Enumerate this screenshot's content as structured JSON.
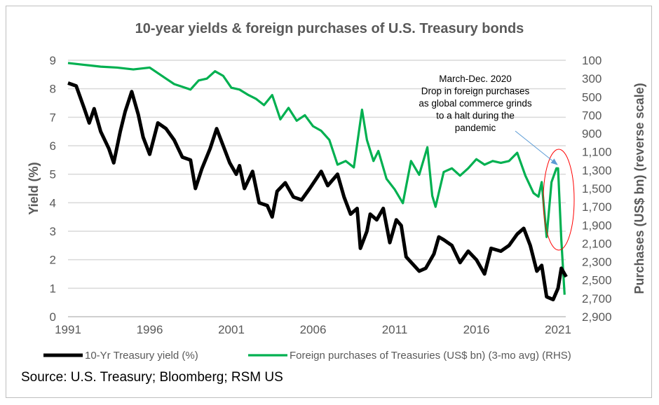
{
  "chart_data": {
    "type": "line",
    "title": "10-year yields & foreign purchases of U.S. Treasury bonds",
    "ylabel": "Yield (%)",
    "y2label": "Purchases (US$ bn) (reverse scale)",
    "xlim": [
      1991,
      2021.6
    ],
    "ylim": [
      0,
      9
    ],
    "y2lim": [
      100,
      2900
    ],
    "y2_reversed": true,
    "x_ticks": [
      "1991",
      "1996",
      "2001",
      "2006",
      "2011",
      "2016",
      "2021"
    ],
    "y_ticks": [
      "0",
      "1",
      "2",
      "3",
      "4",
      "5",
      "6",
      "7",
      "8",
      "9"
    ],
    "y2_ticks": [
      "100",
      "300",
      "500",
      "700",
      "900",
      "1,100",
      "1,300",
      "1,500",
      "1,700",
      "1,900",
      "2,100",
      "2,300",
      "2,500",
      "2,700",
      "2,900"
    ],
    "grid": true,
    "legend_position": "bottom",
    "series": [
      {
        "name": "10-Yr Treasury yield (%)",
        "axis": "left",
        "color": "#000000",
        "x": [
          1991.0,
          1991.5,
          1992.0,
          1992.3,
          1992.6,
          1993.0,
          1993.5,
          1993.8,
          1994.2,
          1994.5,
          1994.9,
          1995.3,
          1995.6,
          1996.0,
          1996.5,
          1997.0,
          1997.5,
          1998.0,
          1998.5,
          1998.8,
          1999.2,
          1999.7,
          2000.1,
          2000.5,
          2000.9,
          2001.3,
          2001.5,
          2001.8,
          2002.3,
          2002.7,
          2003.2,
          2003.5,
          2003.8,
          2004.3,
          2004.8,
          2005.3,
          2005.8,
          2006.5,
          2006.9,
          2007.5,
          2007.9,
          2008.3,
          2008.7,
          2008.9,
          2009.3,
          2009.5,
          2009.9,
          2010.3,
          2010.7,
          2011.1,
          2011.4,
          2011.7,
          2012.5,
          2012.9,
          2013.4,
          2013.7,
          2014.0,
          2014.5,
          2015.0,
          2015.5,
          2016.0,
          2016.5,
          2016.9,
          2017.5,
          2018.0,
          2018.5,
          2018.9,
          2019.3,
          2019.7,
          2020.0,
          2020.3,
          2020.7,
          2021.0,
          2021.2,
          2021.5
        ],
        "values": [
          8.2,
          8.1,
          7.3,
          6.8,
          7.3,
          6.5,
          5.9,
          5.4,
          6.5,
          7.2,
          7.9,
          7.1,
          6.3,
          5.7,
          6.8,
          6.6,
          6.2,
          5.6,
          5.5,
          4.5,
          5.2,
          5.9,
          6.6,
          6.0,
          5.4,
          5.0,
          5.3,
          4.5,
          5.1,
          4.0,
          3.9,
          3.5,
          4.4,
          4.7,
          4.2,
          4.1,
          4.5,
          5.1,
          4.6,
          5.0,
          4.2,
          3.6,
          3.8,
          2.4,
          3.0,
          3.6,
          3.4,
          3.8,
          2.6,
          3.4,
          3.2,
          2.1,
          1.6,
          1.7,
          2.2,
          2.8,
          2.7,
          2.5,
          1.9,
          2.3,
          2.0,
          1.5,
          2.4,
          2.3,
          2.5,
          2.9,
          3.1,
          2.5,
          1.6,
          1.8,
          0.7,
          0.6,
          1.0,
          1.7,
          1.4
        ]
      },
      {
        "name": "Foreign purchases of Treasuries (US$ bn) (3-mo avg) (RHS)",
        "axis": "right",
        "color": "#00b050",
        "x": [
          1991.0,
          1992.0,
          1993.0,
          1994.0,
          1995.0,
          1996.0,
          1996.5,
          1997.0,
          1997.5,
          1998.0,
          1998.5,
          1999.0,
          1999.5,
          2000.0,
          2000.5,
          2001.0,
          2001.5,
          2002.0,
          2002.5,
          2003.0,
          2003.5,
          2004.0,
          2004.5,
          2005.0,
          2005.5,
          2006.0,
          2006.5,
          2007.0,
          2007.5,
          2008.0,
          2008.5,
          2009.0,
          2009.3,
          2009.7,
          2010.0,
          2010.5,
          2011.0,
          2011.5,
          2012.0,
          2012.5,
          2013.0,
          2013.3,
          2013.5,
          2014.0,
          2014.5,
          2015.0,
          2015.5,
          2016.0,
          2016.5,
          2017.0,
          2017.5,
          2018.0,
          2018.5,
          2019.0,
          2019.5,
          2019.8,
          2020.0,
          2020.3,
          2020.6,
          2020.9,
          2021.0,
          2021.2,
          2021.4
        ],
        "values": [
          130,
          150,
          170,
          180,
          200,
          180,
          240,
          300,
          360,
          390,
          420,
          320,
          300,
          220,
          270,
          400,
          420,
          475,
          520,
          590,
          480,
          745,
          620,
          760,
          700,
          820,
          870,
          970,
          1240,
          1200,
          1270,
          640,
          970,
          1200,
          1090,
          1395,
          1510,
          1660,
          1200,
          1350,
          1050,
          1580,
          1700,
          1320,
          1280,
          1360,
          1280,
          1180,
          1240,
          1200,
          1220,
          1200,
          1110,
          1360,
          1550,
          1590,
          1430,
          2030,
          1430,
          1280,
          1280,
          2060,
          2660
        ]
      }
    ],
    "annotation": [
      "March-Dec. 2020",
      "Drop in foreign purchases",
      "as global commerce grinds",
      "to a halt during  the",
      "pandemic"
    ]
  },
  "source": "Source: U.S. Treasury; Bloomberg; RSM US"
}
